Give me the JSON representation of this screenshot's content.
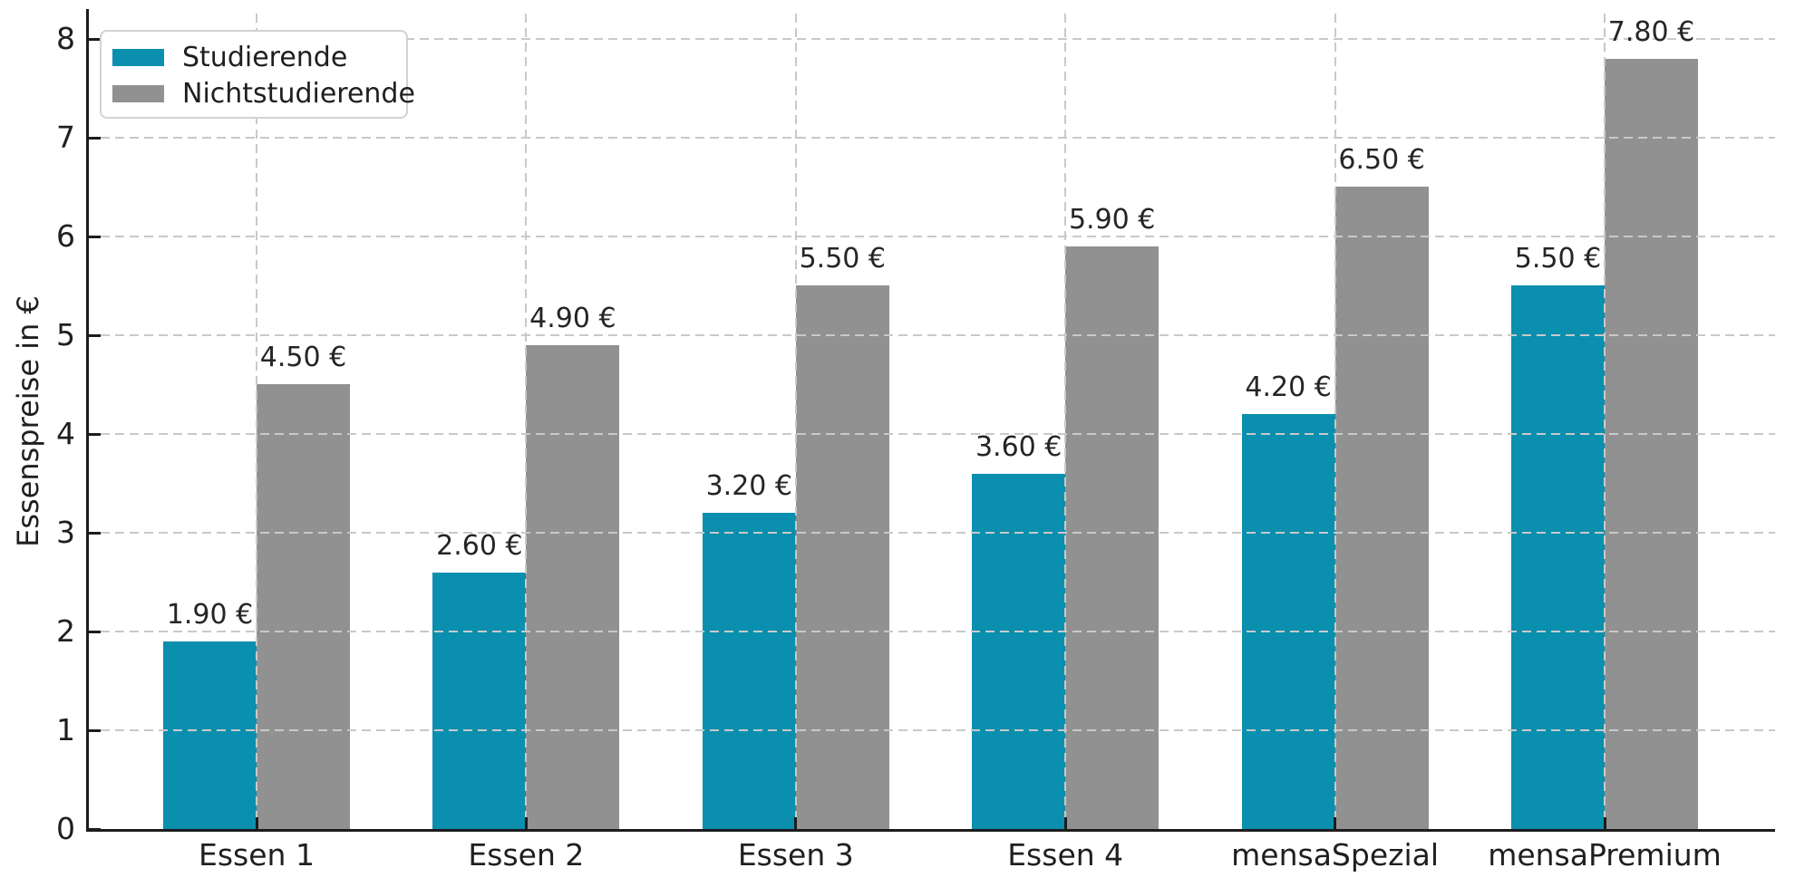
{
  "chart_data": {
    "type": "bar",
    "title": "",
    "ylabel": "Essenspreise in €",
    "xlabel": "",
    "categories": [
      "Essen 1",
      "Essen 2",
      "Essen 3",
      "Essen 4",
      "mensaSpezial",
      "mensaPremium"
    ],
    "series": [
      {
        "name": "Studierende",
        "color": "#0a8fae",
        "values": [
          1.9,
          2.6,
          3.2,
          3.6,
          4.2,
          5.5
        ],
        "labels": [
          "1.90 €",
          "2.60 €",
          "3.20 €",
          "3.60 €",
          "4.20 €",
          "5.50 €"
        ]
      },
      {
        "name": "Nichtstudierende",
        "color": "#919191",
        "values": [
          4.5,
          4.9,
          5.5,
          5.9,
          6.5,
          7.8
        ],
        "labels": [
          "4.50 €",
          "4.90 €",
          "5.50 €",
          "5.90 €",
          "6.50 €",
          "7.80 €"
        ]
      }
    ],
    "yticks": [
      0,
      1,
      2,
      3,
      4,
      5,
      6,
      7,
      8
    ],
    "ylim": [
      0,
      8.26
    ],
    "grid": "dashed, horizontal and vertical, drawn above bars",
    "legend_position": "upper left",
    "style": {
      "grid_color": "#c9c9c9",
      "spine_color": "#1c1c1c",
      "text_color": "#1f1f1f",
      "background": "#ffffff"
    }
  }
}
